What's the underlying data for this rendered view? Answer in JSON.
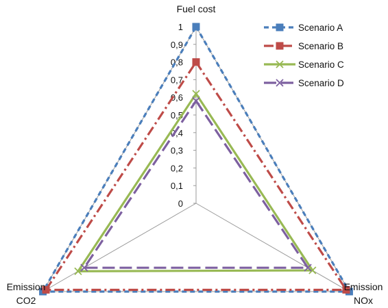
{
  "chart_data": {
    "type": "radar",
    "axes": [
      "Fuel cost",
      "Emission NOx",
      "Emission CO2"
    ],
    "axis_label_lines": {
      "Fuel cost": [
        "Fuel cost"
      ],
      "Emission NOx": [
        "Emission",
        "NOx"
      ],
      "Emission CO2": [
        "Emission",
        "CO2"
      ]
    },
    "rlim": [
      0,
      1
    ],
    "ticks": [
      "0",
      "0,1",
      "0,2",
      "0,3",
      "0,4",
      "0,5",
      "0,6",
      "0,7",
      "0,8",
      "0,9",
      "1"
    ],
    "tick_values": [
      0,
      0.1,
      0.2,
      0.3,
      0.4,
      0.5,
      0.6,
      0.7,
      0.8,
      0.9,
      1
    ],
    "grid": true,
    "legend_position": "top-right",
    "series": [
      {
        "name": "Scenario A",
        "values": [
          1.0,
          1.0,
          1.0
        ],
        "color": "#4A7EBB",
        "dash": "dash",
        "marker": "square"
      },
      {
        "name": "Scenario B",
        "values": [
          0.8,
          0.98,
          0.98
        ],
        "color": "#BE4B48",
        "dash": "dashdot",
        "marker": "square"
      },
      {
        "name": "Scenario C",
        "values": [
          0.62,
          0.76,
          0.77
        ],
        "color": "#98B954",
        "dash": "solid",
        "marker": "x"
      },
      {
        "name": "Scenario D",
        "values": [
          0.58,
          0.73,
          0.73
        ],
        "color": "#7D60A0",
        "dash": "longdash",
        "marker": "x"
      }
    ]
  }
}
